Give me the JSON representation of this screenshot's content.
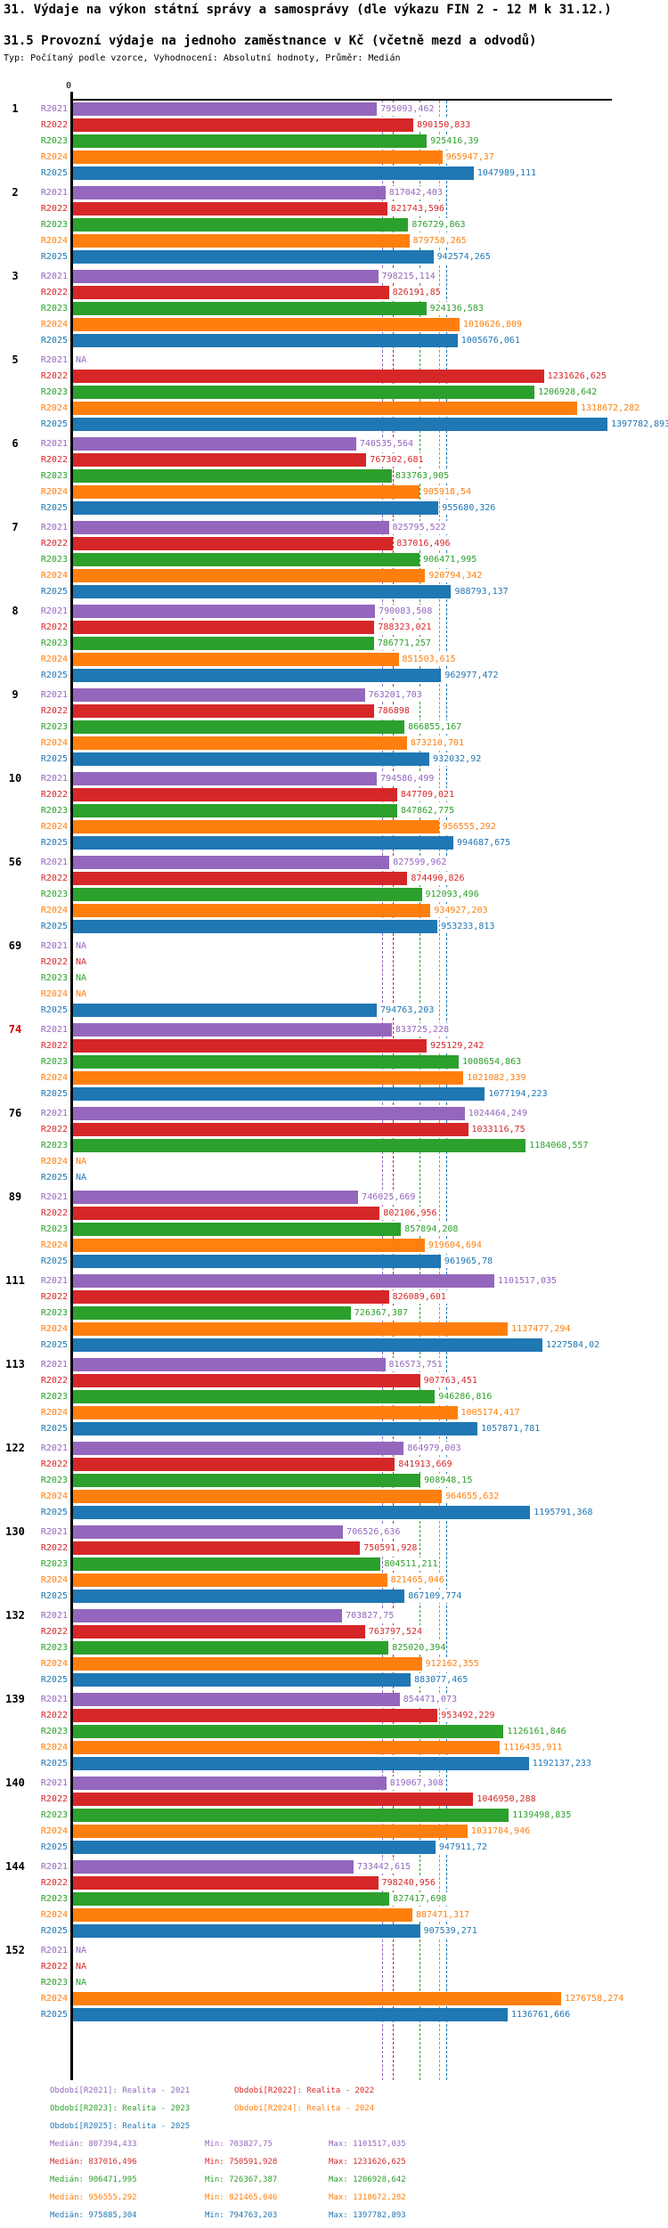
{
  "header": {
    "title": "31. Výdaje na výkon státní správy a samosprávy (dle výkazu FIN 2 - 12 M k 31.12.)",
    "subtitle": "31.5 Provozní výdaje na jednoho zaměstnance v Kč (včetně mezd a odvodů)",
    "meta": "Typ: Počítaný podle vzorce, Vyhodnocení: Absolutní hodnoty, Průměr: Medián"
  },
  "axis": {
    "zero_label": "0"
  },
  "series": [
    {
      "id": "R2021",
      "label": "R2021",
      "color": "#9467bd",
      "legend": "Období[R2021]: Realita - 2021",
      "median": 807394.433,
      "min": 703827.75,
      "max": 1101517.035
    },
    {
      "id": "R2022",
      "label": "R2022",
      "color": "#d62728",
      "legend": "Období[R2022]: Realita - 2022",
      "median": 837016.496,
      "min": 750591.928,
      "max": 1231626.625
    },
    {
      "id": "R2023",
      "label": "R2023",
      "color": "#2ca02c",
      "legend": "Období[R2023]: Realita - 2023",
      "median": 906471.995,
      "min": 726367.387,
      "max": 1206928.642
    },
    {
      "id": "R2024",
      "label": "R2024",
      "color": "#ff7f0e",
      "legend": "Období[R2024]: Realita - 2024",
      "median": 956555.292,
      "min": 821465.046,
      "max": 1318672.282
    },
    {
      "id": "R2025",
      "label": "R2025",
      "color": "#1f77b4",
      "legend": "Období[R2025]: Realita - 2025",
      "median": 975885.304,
      "min": 794763.203,
      "max": 1397782.893
    }
  ],
  "stat_labels": {
    "median": "Medián",
    "min": "Min",
    "max": "Max"
  },
  "na_label": "NA",
  "highlight_color": "#e00000",
  "chart_data": {
    "type": "bar",
    "orientation": "horizontal",
    "title": "31.5 Provozní výdaje na jednoho zaměstnance v Kč (včetně mezd a odvodů)",
    "xlim": [
      0,
      1397782.893
    ],
    "grid": "dashed median reference lines per series",
    "legend_position": "bottom",
    "categories": [
      "1",
      "2",
      "3",
      "5",
      "6",
      "7",
      "8",
      "9",
      "10",
      "56",
      "69",
      "74",
      "76",
      "89",
      "111",
      "113",
      "122",
      "130",
      "132",
      "139",
      "140",
      "144",
      "152"
    ],
    "highlighted_category": "74",
    "series": [
      {
        "name": "R2021",
        "values": [
          795093.462,
          817042.403,
          798215.114,
          null,
          740535.564,
          825795.522,
          790083.508,
          763201.703,
          794586.499,
          827599.962,
          null,
          833725.228,
          1024464.249,
          746025.669,
          1101517.035,
          816573.751,
          864979.003,
          706526.636,
          703827.75,
          854471.073,
          819067.308,
          733442.615,
          null
        ]
      },
      {
        "name": "R2022",
        "values": [
          890150.833,
          821743.596,
          826191.85,
          1231626.625,
          767302.681,
          837016.496,
          788323.021,
          786898,
          847709.021,
          874490.826,
          null,
          925129.242,
          1033116.75,
          802106.956,
          826089.601,
          907763.451,
          841913.669,
          750591.928,
          763797.524,
          953492.229,
          1046950.288,
          798240.956,
          null
        ]
      },
      {
        "name": "R2023",
        "values": [
          925416.39,
          876729.863,
          924136.583,
          1206928.642,
          833763.905,
          906471.995,
          786771.257,
          866855.167,
          847862.775,
          912093.496,
          null,
          1008654.863,
          1184068.557,
          857894.208,
          726367.387,
          946286.816,
          908948.15,
          804511.211,
          825020.394,
          1126161.846,
          1139498.835,
          827417.698,
          null
        ]
      },
      {
        "name": "R2024",
        "values": [
          965947.37,
          879758.265,
          1010626.809,
          1318672.282,
          905918.54,
          920794.342,
          851503.615,
          873210.701,
          956555.292,
          934927.203,
          null,
          1021082.339,
          null,
          919604.694,
          1137477.294,
          1005174.417,
          964655.632,
          821465.046,
          912162.355,
          1116435.911,
          1031784.946,
          887471.317,
          1276758.274
        ]
      },
      {
        "name": "R2025",
        "values": [
          1047989.111,
          942574.265,
          1005676.061,
          1397782.893,
          955680.326,
          988793.137,
          962977.472,
          932032.92,
          994687.675,
          953233.813,
          794763.203,
          1077194.223,
          null,
          961965.78,
          1227584.02,
          1057871.781,
          1195791.368,
          867109.774,
          883077.465,
          1192137.233,
          947911.72,
          907539.271,
          1136761.666
        ]
      }
    ]
  }
}
